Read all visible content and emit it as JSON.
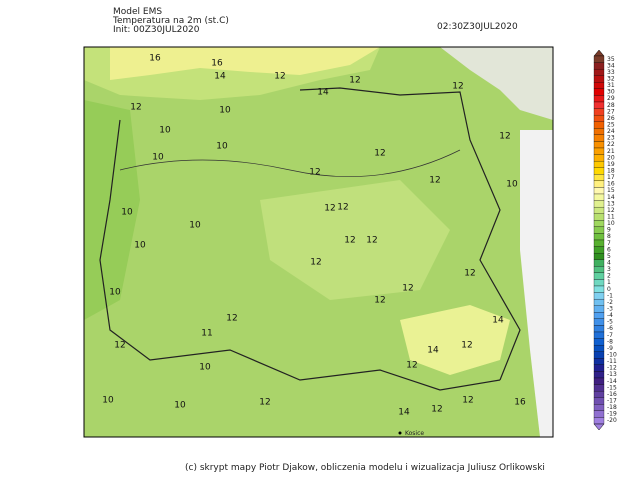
{
  "header": {
    "model": "Model EMS",
    "variable": "Temperatura na 2m (st.C)",
    "init": "Init: 00Z30JUL2020",
    "valid": "02:30Z30JUL2020"
  },
  "legend": [
    {
      "value": 35,
      "color": "#7a3c2a"
    },
    {
      "value": 34,
      "color": "#8a2020"
    },
    {
      "value": 33,
      "color": "#a01818"
    },
    {
      "value": 32,
      "color": "#b81010"
    },
    {
      "value": 31,
      "color": "#d00808"
    },
    {
      "value": 30,
      "color": "#e00000"
    },
    {
      "value": 29,
      "color": "#e81818"
    },
    {
      "value": 28,
      "color": "#f03030"
    },
    {
      "value": 27,
      "color": "#f04020"
    },
    {
      "value": 26,
      "color": "#f05010"
    },
    {
      "value": 25,
      "color": "#f06000"
    },
    {
      "value": 24,
      "color": "#f07000"
    },
    {
      "value": 23,
      "color": "#f58000"
    },
    {
      "value": 22,
      "color": "#f89000"
    },
    {
      "value": 21,
      "color": "#fba000"
    },
    {
      "value": 20,
      "color": "#fdb000"
    },
    {
      "value": 19,
      "color": "#fec800"
    },
    {
      "value": 18,
      "color": "#ffd800"
    },
    {
      "value": 17,
      "color": "#ffe640"
    },
    {
      "value": 16,
      "color": "#fff080"
    },
    {
      "value": 15,
      "color": "#fff8b0"
    },
    {
      "value": 14,
      "color": "#f4f8a0"
    },
    {
      "value": 13,
      "color": "#e0f090"
    },
    {
      "value": 12,
      "color": "#cce880"
    },
    {
      "value": 11,
      "color": "#b8e070"
    },
    {
      "value": 10,
      "color": "#a0d860"
    },
    {
      "value": 9,
      "color": "#88cc50"
    },
    {
      "value": 8,
      "color": "#70c040"
    },
    {
      "value": 7,
      "color": "#58b030"
    },
    {
      "value": 6,
      "color": "#40a028"
    },
    {
      "value": 5,
      "color": "#309020"
    },
    {
      "value": 4,
      "color": "#40b060"
    },
    {
      "value": 3,
      "color": "#50c080"
    },
    {
      "value": 2,
      "color": "#60d0a0"
    },
    {
      "value": 1,
      "color": "#70d8c0"
    },
    {
      "value": 0,
      "color": "#80e0e0"
    },
    {
      "value": -1,
      "color": "#80d0f0"
    },
    {
      "value": -2,
      "color": "#70c0f0"
    },
    {
      "value": -3,
      "color": "#60b0f0"
    },
    {
      "value": -4,
      "color": "#50a0f0"
    },
    {
      "value": -5,
      "color": "#4090e8"
    },
    {
      "value": -6,
      "color": "#3080e0"
    },
    {
      "value": -7,
      "color": "#2070d8"
    },
    {
      "value": -8,
      "color": "#1060d0"
    },
    {
      "value": -9,
      "color": "#0850c0"
    },
    {
      "value": -10,
      "color": "#0840b0"
    },
    {
      "value": -11,
      "color": "#1030a0"
    },
    {
      "value": -12,
      "color": "#202090"
    },
    {
      "value": -13,
      "color": "#302088"
    },
    {
      "value": -14,
      "color": "#402080"
    },
    {
      "value": -15,
      "color": "#503090"
    },
    {
      "value": -16,
      "color": "#6040a0"
    },
    {
      "value": -17,
      "color": "#7050b0"
    },
    {
      "value": -18,
      "color": "#8060c0"
    },
    {
      "value": -19,
      "color": "#9070d0"
    },
    {
      "value": -20,
      "color": "#a080e0"
    }
  ],
  "contour_labels": [
    16,
    16,
    14,
    12,
    12,
    14,
    12,
    12,
    10,
    10,
    10,
    12,
    12,
    10,
    12,
    12,
    10,
    10,
    12,
    12,
    10,
    12,
    12,
    10,
    12,
    12,
    10,
    12,
    12,
    12,
    11,
    14,
    12,
    14,
    12,
    10,
    12,
    10,
    12,
    12,
    14,
    12,
    16,
    10
  ],
  "city": "Kosice",
  "footer": "(c) skrypt mapy Piotr Djakow, obliczenia modelu i wizualizacja Juliusz Orlikowski"
}
